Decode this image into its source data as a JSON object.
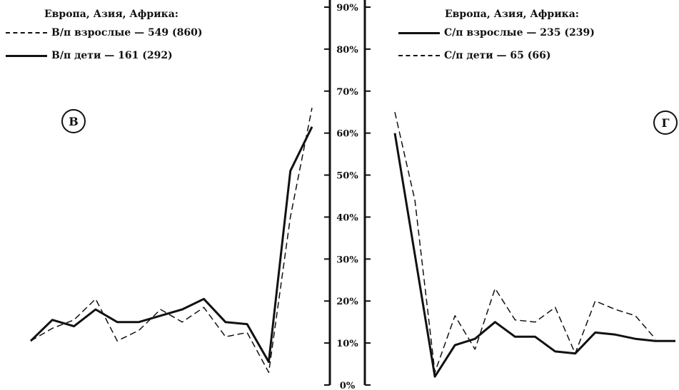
{
  "chart_data": [
    {
      "type": "line",
      "panel_marker": "В",
      "legend_title": "Европа, Азия, Африка:",
      "ylim": [
        0,
        90
      ],
      "y_ticks": [
        "0%",
        "10%",
        "20%",
        "30%",
        "40%",
        "50%",
        "60%",
        "70%",
        "80%",
        "90%"
      ],
      "grid": false,
      "legend_position": "top-left",
      "series": [
        {
          "name": "В/п взрослые — 549   (860)",
          "style": "dashed",
          "color": "#111111",
          "values": [
            10.5,
            13.5,
            15.5,
            20.5,
            10.5,
            13,
            18,
            15,
            18.5,
            11.5,
            12.5,
            3,
            40,
            66
          ]
        },
        {
          "name": "В/п дети — 161  (292)",
          "style": "solid",
          "color": "#111111",
          "values": [
            10.5,
            15.5,
            14,
            18,
            15,
            15,
            16.5,
            18,
            20.5,
            15,
            14.5,
            5.5,
            51,
            61.5
          ]
        }
      ]
    },
    {
      "type": "line",
      "panel_marker": "Г",
      "legend_title": "Европа, Азия, Африка:",
      "ylim": [
        0,
        90
      ],
      "grid": false,
      "legend_position": "top-left",
      "series": [
        {
          "name": "С/п взрослые — 235  (239)",
          "style": "solid",
          "color": "#111111",
          "values": [
            60,
            31,
            2,
            9.5,
            11,
            15,
            11.5,
            11.5,
            8,
            7.5,
            12.5,
            12,
            11,
            10.5,
            10.5
          ]
        },
        {
          "name": "С/п дети — 65  (66)",
          "style": "dashed",
          "color": "#111111",
          "values": [
            65,
            44,
            3,
            16.5,
            8.5,
            23,
            15.5,
            15,
            18.5,
            7.5,
            20,
            18,
            16.5,
            11,
            null
          ]
        }
      ]
    }
  ]
}
